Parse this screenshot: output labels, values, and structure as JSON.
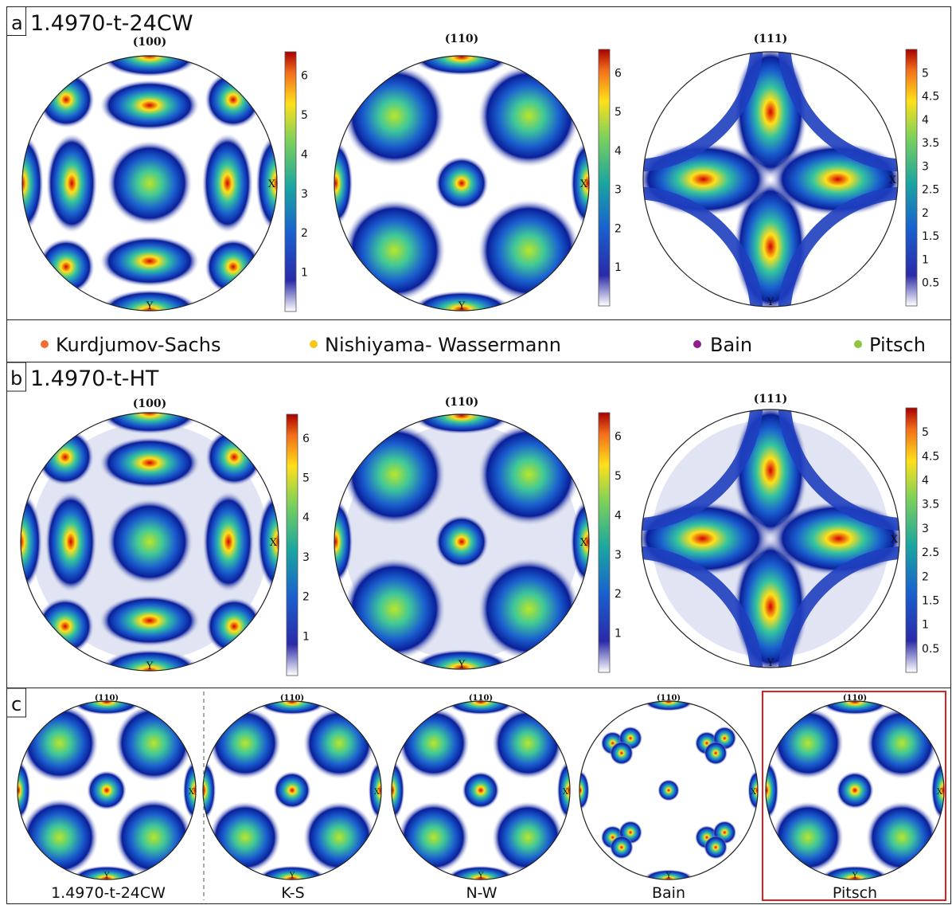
{
  "panels": {
    "a": {
      "letter": "a",
      "title": "1.4970-t-24CW"
    },
    "b": {
      "letter": "b",
      "title": "1.4970-t-HT"
    },
    "c": {
      "letter": "c"
    }
  },
  "pole_titles": {
    "p100": "(100)",
    "p110": "(110)",
    "p111": "(111)"
  },
  "axis_labels": {
    "x": "X",
    "y": "Y"
  },
  "legend": [
    {
      "label": "Kurdjumov-Sachs",
      "color": "#f26d2b"
    },
    {
      "label": "Nishiyama- Wassermann",
      "color": "#f5c518"
    },
    {
      "label": "Bain",
      "color": "#8e1f8e"
    },
    {
      "label": "Pitsch",
      "color": "#8cc63f"
    }
  ],
  "colorbars": {
    "a100": [
      "1",
      "2",
      "3",
      "4",
      "5",
      "6"
    ],
    "a110": [
      "1",
      "2",
      "3",
      "4",
      "5",
      "6"
    ],
    "a111": [
      "0.5",
      "1",
      "1.5",
      "2",
      "2.5",
      "3",
      "3.5",
      "4",
      "4.5",
      "5"
    ],
    "b100": [
      "1",
      "2",
      "3",
      "4",
      "5",
      "6"
    ],
    "b110": [
      "1",
      "2",
      "3",
      "4",
      "5",
      "6"
    ],
    "b111": [
      "0.5",
      "1",
      "1.5",
      "2",
      "2.5",
      "3",
      "3.5",
      "4",
      "4.5",
      "5"
    ]
  },
  "panel_c_labels": [
    "1.4970-t-24CW",
    "K-S",
    "N-W",
    "Bain",
    "Pitsch"
  ],
  "highlight_color": "#e02020"
}
